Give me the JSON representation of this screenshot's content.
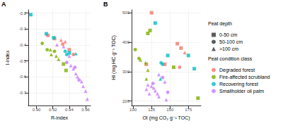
{
  "chart_data": {
    "type": "scatter",
    "legend": "right",
    "grid": true,
    "legend_titles": {
      "depth": "Peat depth",
      "condition": "Peat condition class"
    },
    "depth_classes": [
      {
        "name": "0-50 cm",
        "marker": "square"
      },
      {
        "name": "50-100 cm",
        "marker": "circle"
      },
      {
        "name": ">100 cm",
        "marker": "triangle"
      }
    ],
    "condition_classes": [
      {
        "name": "Degraded forest",
        "color": "#F8766D"
      },
      {
        "name": "Fire-affected scrubland",
        "color": "#7CAE00"
      },
      {
        "name": "Recovering forest",
        "color": "#00BFC4"
      },
      {
        "name": "Smallholder oil palm",
        "color": "#C77CFF"
      }
    ],
    "panels": [
      {
        "title": "A",
        "x_label": "R-index",
        "y_label": "I-index",
        "xlim": [
          0.89,
          0.966
        ],
        "ylim": [
          -0.78,
          -0.18
        ],
        "xticks": [
          {
            "value": 0.9,
            "label": "0.90"
          },
          0.92,
          0.94,
          0.96
        ],
        "yticks": [
          -0.7,
          -0.6,
          -0.5,
          -0.4,
          -0.3,
          -0.2
        ],
        "series": [
          {
            "name": "Degraded forest",
            "values": [
              [
                0.914,
                -0.34,
                "0-50 cm"
              ],
              [
                0.922,
                -0.36,
                "0-50 cm"
              ],
              [
                0.93,
                -0.37,
                ">100 cm"
              ],
              [
                0.932,
                -0.395,
                "50-100 cm"
              ],
              [
                0.935,
                -0.38,
                ">100 cm"
              ],
              [
                0.94,
                -0.43,
                "0-50 cm"
              ],
              [
                0.945,
                -0.46,
                "50-100 cm"
              ]
            ]
          },
          {
            "name": "Fire-affected scrubland",
            "values": [
              [
                0.907,
                -0.39,
                "50-100 cm"
              ],
              [
                0.913,
                -0.43,
                "50-100 cm"
              ],
              [
                0.917,
                -0.43,
                ">100 cm"
              ],
              [
                0.918,
                -0.46,
                ">100 cm"
              ],
              [
                0.922,
                -0.44,
                "50-100 cm"
              ],
              [
                0.924,
                -0.47,
                ">100 cm"
              ],
              [
                0.927,
                -0.49,
                ">100 cm"
              ],
              [
                0.933,
                -0.52,
                "0-50 cm"
              ],
              [
                0.936,
                -0.56,
                "0-50 cm"
              ]
            ]
          },
          {
            "name": "Recovering forest",
            "values": [
              [
                0.893,
                -0.21,
                "0-50 cm"
              ],
              [
                0.912,
                -0.33,
                "0-50 cm"
              ],
              [
                0.921,
                -0.355,
                "0-50 cm"
              ],
              [
                0.935,
                -0.44,
                "50-100 cm"
              ],
              [
                0.937,
                -0.46,
                "50-100 cm"
              ],
              [
                0.948,
                -0.455,
                ">100 cm"
              ],
              [
                0.94,
                -0.45,
                "0-50 cm"
              ]
            ]
          },
          {
            "name": "Smallholder oil palm",
            "values": [
              [
                0.925,
                -0.4,
                ">100 cm"
              ],
              [
                0.933,
                -0.41,
                ">100 cm"
              ],
              [
                0.94,
                -0.47,
                ">100 cm"
              ],
              [
                0.937,
                -0.51,
                "50-100 cm"
              ],
              [
                0.942,
                -0.53,
                ">100 cm"
              ],
              [
                0.945,
                -0.55,
                ">100 cm"
              ],
              [
                0.948,
                -0.58,
                ">100 cm"
              ],
              [
                0.95,
                -0.6,
                ">100 cm"
              ],
              [
                0.952,
                -0.62,
                "50-100 cm"
              ],
              [
                0.955,
                -0.63,
                ">100 cm"
              ],
              [
                0.957,
                -0.66,
                ">100 cm"
              ],
              [
                0.96,
                -0.69,
                ">100 cm"
              ],
              [
                0.962,
                -0.74,
                ">100 cm"
              ],
              [
                0.947,
                -0.54,
                "50-100 cm"
              ]
            ]
          }
        ]
      },
      {
        "title": "B",
        "x_label": "OI (mg CO₂ g⁻¹ TOC)",
        "y_label": "HI (mg HC g⁻¹ TOC)",
        "xlim": [
          98,
          192
        ],
        "ylim": [
          185,
          510
        ],
        "xticks": [
          100,
          125,
          150,
          175
        ],
        "yticks": [
          200,
          300,
          400,
          500
        ],
        "series": [
          {
            "name": "Degraded forest",
            "values": [
              [
                125,
                500,
                "0-50 cm"
              ],
              [
                118,
                325,
                "0-50 cm"
              ],
              [
                160,
                395,
                "0-50 cm"
              ],
              [
                165,
                380,
                "0-50 cm"
              ],
              [
                170,
                365,
                ">100 cm"
              ],
              [
                163,
                315,
                "50-100 cm"
              ],
              [
                143,
                325,
                "0-50 cm"
              ]
            ]
          },
          {
            "name": "Fire-affected scrubland",
            "values": [
              [
                120,
                430,
                "0-50 cm"
              ],
              [
                123,
                440,
                "0-50 cm"
              ],
              [
                103,
                375,
                "50-100 cm"
              ],
              [
                108,
                345,
                "50-100 cm"
              ],
              [
                110,
                340,
                ">100 cm"
              ],
              [
                117,
                330,
                ">100 cm"
              ],
              [
                120,
                305,
                ">100 cm"
              ],
              [
                155,
                315,
                "0-50 cm"
              ],
              [
                118,
                275,
                ">100 cm"
              ],
              [
                188,
                210,
                "0-50 cm"
              ]
            ]
          },
          {
            "name": "Recovering forest",
            "values": [
              [
                130,
                465,
                "0-50 cm"
              ],
              [
                147,
                355,
                "0-50 cm"
              ],
              [
                140,
                325,
                "50-100 cm"
              ],
              [
                138,
                330,
                "50-100 cm"
              ],
              [
                137,
                275,
                ">100 cm"
              ],
              [
                183,
                310,
                "0-50 cm"
              ],
              [
                175,
                355,
                "0-50 cm"
              ]
            ]
          },
          {
            "name": "Smallholder oil palm",
            "values": [
              [
                120,
                255,
                ">100 cm"
              ],
              [
                125,
                250,
                ">100 cm"
              ],
              [
                128,
                245,
                ">100 cm"
              ],
              [
                130,
                235,
                ">100 cm"
              ],
              [
                133,
                225,
                ">100 cm"
              ],
              [
                135,
                215,
                ">100 cm"
              ],
              [
                122,
                225,
                ">100 cm"
              ],
              [
                118,
                240,
                ">100 cm"
              ],
              [
                127,
                260,
                "50-100 cm"
              ],
              [
                140,
                280,
                "50-100 cm"
              ],
              [
                147,
                230,
                "50-100 cm"
              ],
              [
                143,
                265,
                ">100 cm"
              ],
              [
                145,
                205,
                ">100 cm"
              ],
              [
                135,
                290,
                ">100 cm"
              ]
            ]
          }
        ]
      }
    ]
  }
}
